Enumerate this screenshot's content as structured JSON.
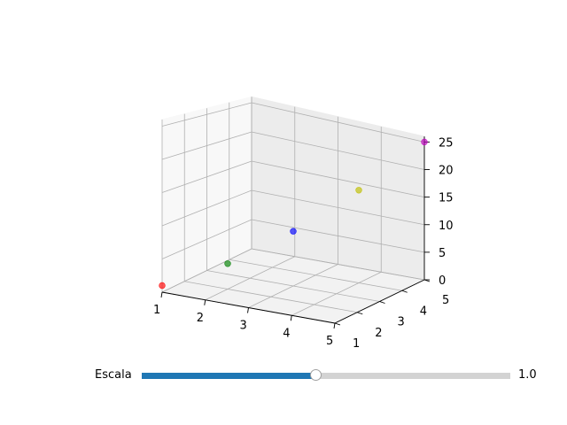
{
  "chart_data": {
    "type": "scatter",
    "projection": "3d",
    "points": [
      {
        "x": 1,
        "y": 1,
        "z": 1,
        "color": "#ff0000"
      },
      {
        "x": 2,
        "y": 2,
        "z": 4,
        "color": "#008000"
      },
      {
        "x": 3,
        "y": 3,
        "z": 9,
        "color": "#0000ff"
      },
      {
        "x": 4,
        "y": 4,
        "z": 16,
        "color": "#bfbf00"
      },
      {
        "x": 5,
        "y": 5,
        "z": 25,
        "color": "#bf00bf"
      }
    ],
    "xticks": [
      "1",
      "2",
      "3",
      "4",
      "5"
    ],
    "yticks": [
      "1",
      "2",
      "3",
      "4",
      "5"
    ],
    "zticks": [
      "0",
      "5",
      "10",
      "15",
      "20",
      "25"
    ],
    "xlim": [
      1,
      5
    ],
    "ylim": [
      1,
      5
    ],
    "zlim": [
      0,
      26
    ],
    "grid": true
  },
  "slider": {
    "label": "Escala",
    "value_text": "1.0",
    "value": 1.0,
    "min": 0.1,
    "max": 2.0,
    "fill_color": "#1f77b4"
  }
}
